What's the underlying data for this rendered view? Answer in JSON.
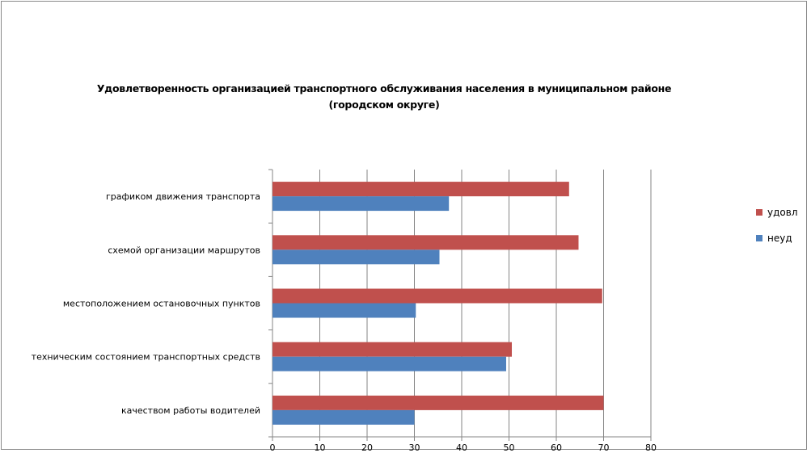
{
  "chart_data": {
    "type": "bar",
    "orientation": "horizontal",
    "title": "Удовлетворенность организацией транспортного обслуживания населения в муниципальном районе (городском округе)",
    "title_lines": [
      "Удовлетворенность организацией транспортного обслуживания населения в муниципальном районе",
      "(городском округе)"
    ],
    "categories": [
      "графиком движения  транспорта",
      "схемой организации маршрутов",
      "местоположением  остановочных пунктов",
      "техническим  состоянием транспортных средств",
      "качеством работы водителей"
    ],
    "series": [
      {
        "name": "удовл",
        "color": "#C0504D",
        "values": [
          62.7,
          64.7,
          69.7,
          50.6,
          70.0
        ]
      },
      {
        "name": "неуд",
        "color": "#4F81BD",
        "values": [
          37.3,
          35.3,
          30.3,
          49.4,
          30.0
        ]
      }
    ],
    "xlim": [
      0,
      80
    ],
    "xticks": [
      "0",
      "10",
      "20",
      "30",
      "40",
      "50",
      "60",
      "70",
      "80"
    ],
    "xlabel": "",
    "ylabel": "",
    "grid": true,
    "legend_position": "right"
  }
}
